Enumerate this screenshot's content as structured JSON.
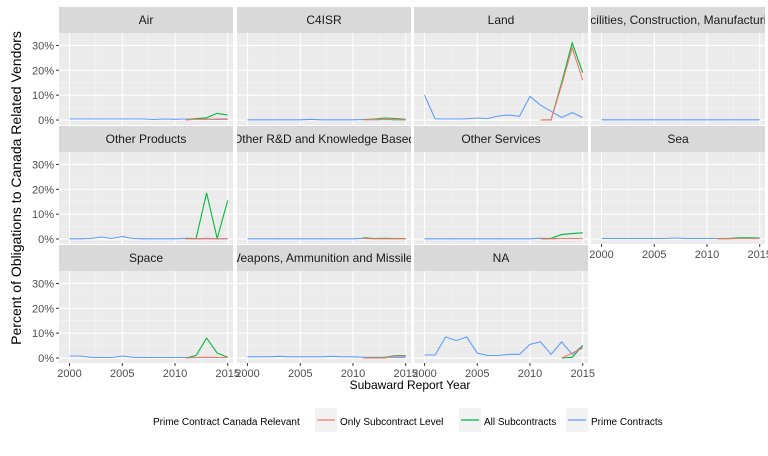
{
  "chart_data": {
    "type": "line",
    "facet_layout": "wrap 4 columns",
    "ylabel": "Percent of Obligations to Canada Related Vendors",
    "xlabel": "Subaward Report Year",
    "xlim": [
      1999,
      2015.5
    ],
    "ylim": [
      -0.02,
      0.35
    ],
    "x_ticks": [
      2000,
      2005,
      2010,
      2015
    ],
    "x_tick_labels": [
      "2000",
      "2005",
      "2010",
      "2015"
    ],
    "y_ticks": [
      0,
      0.1,
      0.2,
      0.3
    ],
    "y_tick_labels": [
      "0%",
      "10%",
      "20%",
      "30%"
    ],
    "grid": true,
    "legend": {
      "position": "bottom",
      "title": "Prime Contract Canada Relevant",
      "entries": [
        {
          "name": "Only Subcontract Level",
          "color": "#F8766D"
        },
        {
          "name": "All Subcontracts",
          "color": "#00BA38"
        },
        {
          "name": "Prime Contracts",
          "color": "#619CFF"
        }
      ]
    },
    "panels": [
      {
        "label": "Air",
        "series": [
          {
            "name": "Prime Contracts",
            "x": [
              2000,
              2001,
              2002,
              2003,
              2004,
              2005,
              2006,
              2007,
              2008,
              2009,
              2010,
              2011,
              2012,
              2013,
              2014,
              2015
            ],
            "y": [
              0.004,
              0.004,
              0.004,
              0.004,
              0.004,
              0.004,
              0.004,
              0.004,
              0.002,
              0.004,
              0.003,
              0.004,
              0.004,
              0.003,
              0.004,
              0.005
            ]
          },
          {
            "name": "All Subcontracts",
            "x": [
              2011,
              2012,
              2013,
              2014,
              2015
            ],
            "y": [
              0.0,
              0.006,
              0.009,
              0.027,
              0.02
            ]
          },
          {
            "name": "Only Subcontract Level",
            "x": [
              2011,
              2012,
              2013,
              2014,
              2015
            ],
            "y": [
              0.0,
              0.003,
              0.003,
              0.002,
              0.003
            ]
          }
        ]
      },
      {
        "label": "C4ISR",
        "series": [
          {
            "name": "Prime Contracts",
            "x": [
              2000,
              2001,
              2002,
              2003,
              2004,
              2005,
              2006,
              2007,
              2008,
              2009,
              2010,
              2011,
              2012,
              2013,
              2014,
              2015
            ],
            "y": [
              0.001,
              0.001,
              0.001,
              0.001,
              0.001,
              0.001,
              0.003,
              0.001,
              0.001,
              0.001,
              0.001,
              0.002,
              0.001,
              0.002,
              0.001,
              0.001
            ]
          },
          {
            "name": "All Subcontracts",
            "x": [
              2011,
              2012,
              2013,
              2014,
              2015
            ],
            "y": [
              0.002,
              0.004,
              0.008,
              0.006,
              0.003
            ]
          },
          {
            "name": "Only Subcontract Level",
            "x": [
              2011,
              2012,
              2013,
              2014,
              2015
            ],
            "y": [
              0.001,
              0.002,
              0.003,
              0.002,
              0.001
            ]
          }
        ]
      },
      {
        "label": "Land",
        "series": [
          {
            "name": "Prime Contracts",
            "x": [
              2000,
              2001,
              2002,
              2003,
              2004,
              2005,
              2006,
              2007,
              2008,
              2009,
              2010,
              2011,
              2012,
              2013,
              2014,
              2015
            ],
            "y": [
              0.1,
              0.005,
              0.004,
              0.004,
              0.005,
              0.008,
              0.006,
              0.016,
              0.02,
              0.015,
              0.095,
              0.06,
              0.035,
              0.01,
              0.03,
              0.01
            ]
          },
          {
            "name": "All Subcontracts",
            "x": [
              2011,
              2012,
              2013,
              2014,
              2015
            ],
            "y": [
              0.0,
              0.001,
              0.15,
              0.31,
              0.19
            ]
          },
          {
            "name": "Only Subcontract Level",
            "x": [
              2011,
              2012,
              2013,
              2014,
              2015
            ],
            "y": [
              0.0,
              0.001,
              0.14,
              0.29,
              0.16
            ]
          }
        ]
      },
      {
        "label": "Facilities, Construction, Manufacturing",
        "series": [
          {
            "name": "Prime Contracts",
            "x": [
              2000,
              2001,
              2002,
              2003,
              2004,
              2005,
              2006,
              2007,
              2008,
              2009,
              2010,
              2011,
              2012,
              2013,
              2014,
              2015
            ],
            "y": [
              0.001,
              0.001,
              0.001,
              0.001,
              0.001,
              0.001,
              0.001,
              0.001,
              0.001,
              0.001,
              0.001,
              0.001,
              0.001,
              0.001,
              0.001,
              0.001
            ]
          }
        ]
      },
      {
        "label": "Other Products",
        "series": [
          {
            "name": "Prime Contracts",
            "x": [
              2000,
              2001,
              2002,
              2003,
              2004,
              2005,
              2006,
              2007,
              2008,
              2009,
              2010,
              2011,
              2012,
              2013,
              2014,
              2015
            ],
            "y": [
              0.001,
              0.001,
              0.002,
              0.008,
              0.002,
              0.01,
              0.002,
              0.001,
              0.001,
              0.001,
              0.001,
              0.002,
              0.001,
              0.001,
              0.001,
              0.001
            ]
          },
          {
            "name": "All Subcontracts",
            "x": [
              2011,
              2012,
              2013,
              2014,
              2015
            ],
            "y": [
              0.003,
              0.002,
              0.185,
              0.002,
              0.155
            ]
          },
          {
            "name": "Only Subcontract Level",
            "x": [
              2011,
              2012,
              2013,
              2014,
              2015
            ],
            "y": [
              0.001,
              0.001,
              0.003,
              0.001,
              0.002
            ]
          }
        ]
      },
      {
        "label": "Other R&D and Knowledge Based",
        "series": [
          {
            "name": "Prime Contracts",
            "x": [
              2000,
              2001,
              2002,
              2003,
              2004,
              2005,
              2006,
              2007,
              2008,
              2009,
              2010,
              2011,
              2012,
              2013,
              2014,
              2015
            ],
            "y": [
              0.001,
              0.001,
              0.001,
              0.001,
              0.001,
              0.001,
              0.001,
              0.001,
              0.001,
              0.001,
              0.001,
              0.003,
              0.002,
              0.002,
              0.002,
              0.002
            ]
          },
          {
            "name": "All Subcontracts",
            "x": [
              2011,
              2012,
              2013,
              2014,
              2015
            ],
            "y": [
              0.005,
              0.002,
              0.003,
              0.002,
              0.002
            ]
          },
          {
            "name": "Only Subcontract Level",
            "x": [
              2011,
              2012,
              2013,
              2014,
              2015
            ],
            "y": [
              0.002,
              0.001,
              0.001,
              0.001,
              0.001
            ]
          }
        ]
      },
      {
        "label": "Other Services",
        "series": [
          {
            "name": "Prime Contracts",
            "x": [
              2000,
              2001,
              2002,
              2003,
              2004,
              2005,
              2006,
              2007,
              2008,
              2009,
              2010,
              2011,
              2012,
              2013,
              2014,
              2015
            ],
            "y": [
              0.001,
              0.001,
              0.001,
              0.001,
              0.001,
              0.001,
              0.001,
              0.001,
              0.001,
              0.001,
              0.001,
              0.003,
              0.002,
              0.002,
              0.002,
              0.002
            ]
          },
          {
            "name": "All Subcontracts",
            "x": [
              2011,
              2012,
              2013,
              2014,
              2015
            ],
            "y": [
              0.0,
              0.003,
              0.018,
              0.022,
              0.025
            ]
          },
          {
            "name": "Only Subcontract Level",
            "x": [
              2011,
              2012,
              2013,
              2014,
              2015
            ],
            "y": [
              0.0,
              0.001,
              0.002,
              0.002,
              0.002
            ]
          }
        ]
      },
      {
        "label": "Sea",
        "series": [
          {
            "name": "Prime Contracts",
            "x": [
              2000,
              2001,
              2002,
              2003,
              2004,
              2005,
              2006,
              2007,
              2008,
              2009,
              2010,
              2011,
              2012,
              2013,
              2014,
              2015
            ],
            "y": [
              0.002,
              0.002,
              0.002,
              0.002,
              0.002,
              0.002,
              0.002,
              0.004,
              0.002,
              0.002,
              0.002,
              0.002,
              0.002,
              0.002,
              0.002,
              0.002
            ]
          },
          {
            "name": "All Subcontracts",
            "x": [
              2011,
              2012,
              2013,
              2014,
              2015
            ],
            "y": [
              0.002,
              0.002,
              0.005,
              0.005,
              0.004
            ]
          },
          {
            "name": "Only Subcontract Level",
            "x": [
              2011,
              2012,
              2013,
              2014,
              2015
            ],
            "y": [
              0.001,
              0.001,
              0.002,
              0.002,
              0.002
            ]
          }
        ]
      },
      {
        "label": "Space",
        "series": [
          {
            "name": "Prime Contracts",
            "x": [
              2000,
              2001,
              2002,
              2003,
              2004,
              2005,
              2006,
              2007,
              2008,
              2009,
              2010,
              2011,
              2012,
              2013,
              2014,
              2015
            ],
            "y": [
              0.008,
              0.008,
              0.003,
              0.002,
              0.002,
              0.008,
              0.003,
              0.002,
              0.002,
              0.002,
              0.002,
              0.002,
              0.002,
              0.002,
              0.002,
              0.002
            ]
          },
          {
            "name": "All Subcontracts",
            "x": [
              2011,
              2012,
              2013,
              2014,
              2015
            ],
            "y": [
              0.0,
              0.01,
              0.08,
              0.02,
              0.003
            ]
          },
          {
            "name": "Only Subcontract Level",
            "x": [
              2011,
              2012,
              2013,
              2014,
              2015
            ],
            "y": [
              0.0,
              0.002,
              0.003,
              0.002,
              0.002
            ]
          }
        ]
      },
      {
        "label": "Weapons, Ammunition and Missiles",
        "series": [
          {
            "name": "Prime Contracts",
            "x": [
              2000,
              2001,
              2002,
              2003,
              2004,
              2005,
              2006,
              2007,
              2008,
              2009,
              2010,
              2011,
              2012,
              2013,
              2014,
              2015
            ],
            "y": [
              0.005,
              0.005,
              0.005,
              0.007,
              0.005,
              0.005,
              0.005,
              0.005,
              0.007,
              0.005,
              0.005,
              0.003,
              0.003,
              0.003,
              0.003,
              0.003
            ]
          },
          {
            "name": "All Subcontracts",
            "x": [
              2011,
              2012,
              2013,
              2014,
              2015
            ],
            "y": [
              0.0,
              0.002,
              0.002,
              0.01,
              0.01
            ]
          },
          {
            "name": "Only Subcontract Level",
            "x": [
              2011,
              2012,
              2013,
              2014,
              2015
            ],
            "y": [
              0.0,
              0.001,
              0.0,
              0.008,
              0.008
            ]
          }
        ]
      },
      {
        "label": "NA",
        "series": [
          {
            "name": "Prime Contracts",
            "x": [
              2000,
              2001,
              2002,
              2003,
              2004,
              2005,
              2006,
              2007,
              2008,
              2009,
              2010,
              2011,
              2012,
              2013,
              2014,
              2015
            ],
            "y": [
              0.012,
              0.012,
              0.085,
              0.07,
              0.085,
              0.02,
              0.01,
              0.01,
              0.015,
              0.015,
              0.055,
              0.065,
              0.015,
              0.065,
              0.015,
              0.05
            ]
          },
          {
            "name": "All Subcontracts",
            "x": [
              2013,
              2014,
              2015
            ],
            "y": [
              0.0,
              0.003,
              0.05
            ]
          },
          {
            "name": "Only Subcontract Level",
            "x": [
              2013,
              2014,
              2015
            ],
            "y": [
              0.0,
              0.02,
              0.04
            ]
          }
        ]
      }
    ]
  }
}
